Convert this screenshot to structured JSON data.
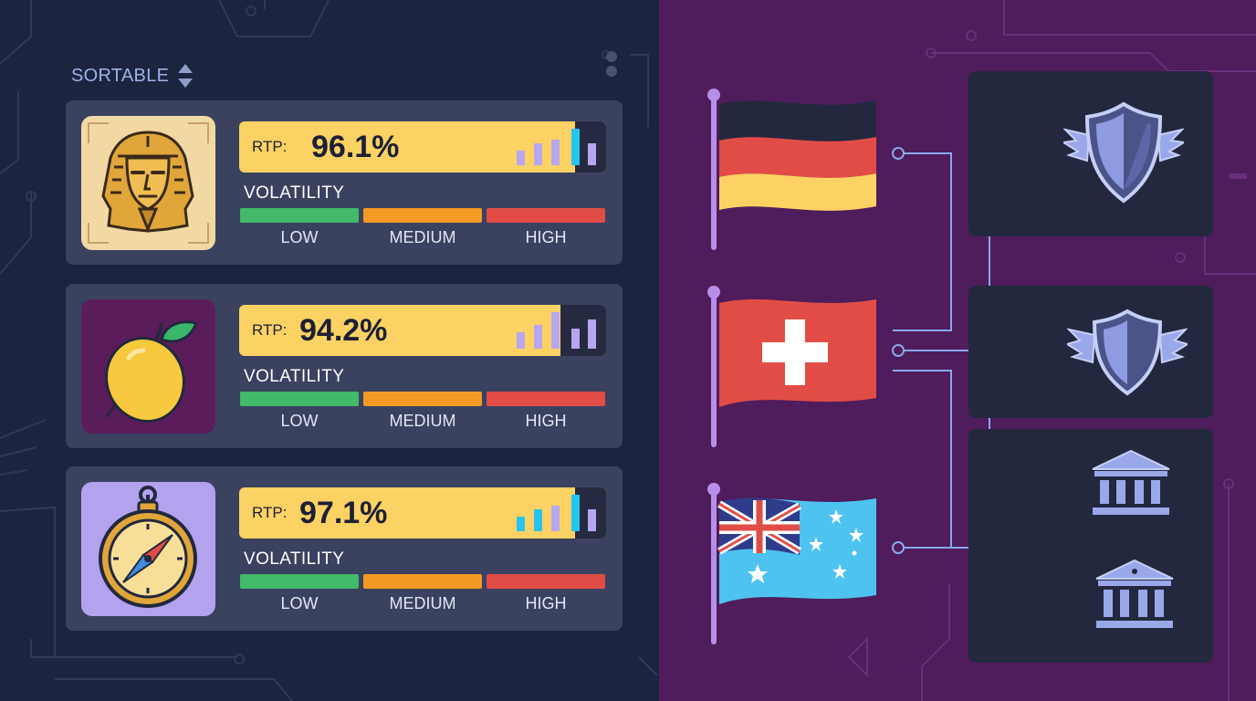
{
  "sort": {
    "label": "SORTABLE",
    "icon": "sort-updown-icon"
  },
  "colors": {
    "left_bg": "#1c2440",
    "right_bg": "#4f1c5c",
    "card_bg": "#3a4260",
    "rtp_bar": "#fbd263",
    "vol_low": "#43b96a",
    "vol_medium": "#f39a24",
    "vol_high": "#e14d46",
    "accent_lavender": "#b8a6f0",
    "accent_cyan": "#27c4f0"
  },
  "games": [
    {
      "icon": "pharaoh-icon",
      "rtp_label": "RTP:",
      "rtp_value": "96.1%",
      "vol_label": "VOLATILITY",
      "vol_levels": [
        "LOW",
        "MEDIUM",
        "HIGH"
      ]
    },
    {
      "icon": "lemon-icon",
      "rtp_label": "RTP:",
      "rtp_value": "94.2%",
      "vol_label": "VOLATILITY",
      "vol_levels": [
        "LOW",
        "MEDIUM",
        "HIGH"
      ]
    },
    {
      "icon": "compass-icon",
      "rtp_label": "RTP:",
      "rtp_value": "97.1%",
      "vol_label": "VOLATILITY",
      "vol_levels": [
        "LOW",
        "MEDIUM",
        "HIGH"
      ]
    }
  ],
  "flags": [
    "germany-flag-icon",
    "switzerland-flag-icon",
    "australia-flag-icon"
  ],
  "regulators": [
    "winged-shield-icon",
    "winged-shield-icon",
    "bank-building-icon",
    "bank-building-icon"
  ]
}
